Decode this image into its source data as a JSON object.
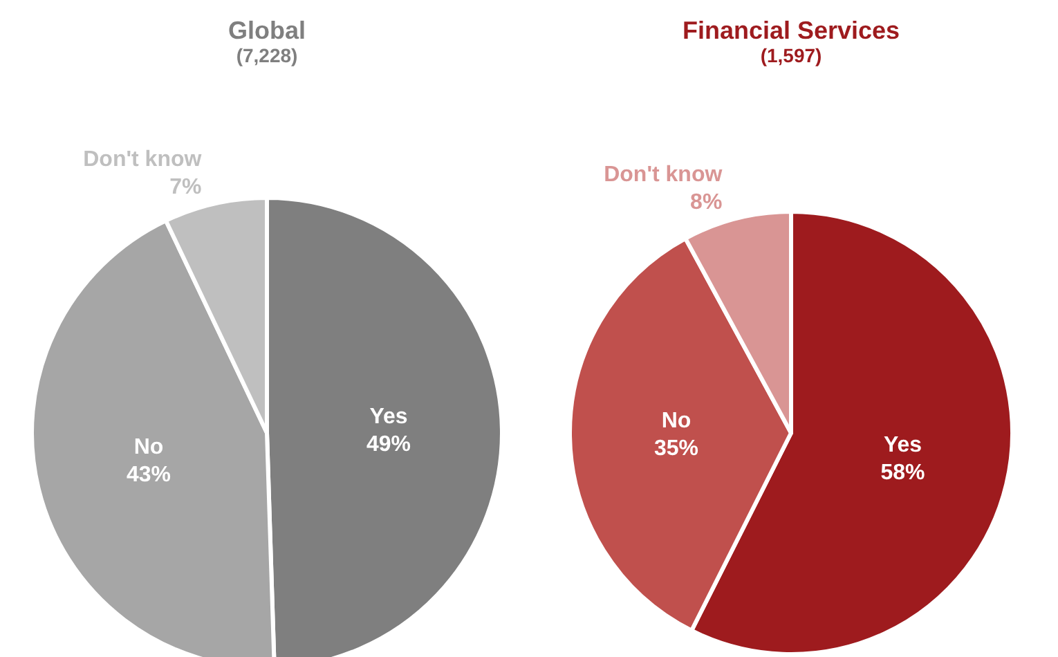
{
  "chart_data": [
    {
      "type": "pie",
      "title": "Global",
      "subtitle": "(7,228)",
      "categories": [
        "Yes",
        "No",
        "Don't know"
      ],
      "values": [
        49,
        43,
        7
      ],
      "value_labels": [
        "49%",
        "43%",
        "7%"
      ],
      "colors": [
        "#7f7f7f",
        "#a6a6a6",
        "#bfbfbf"
      ],
      "legend": false
    },
    {
      "type": "pie",
      "title": "Financial Services",
      "subtitle": "(1,597)",
      "categories": [
        "Yes",
        "No",
        "Don't know"
      ],
      "values": [
        58,
        35,
        8
      ],
      "value_labels": [
        "58%",
        "35%",
        "8%"
      ],
      "colors": [
        "#9e1b1e",
        "#c0504d",
        "#d99594"
      ],
      "legend": false
    }
  ]
}
